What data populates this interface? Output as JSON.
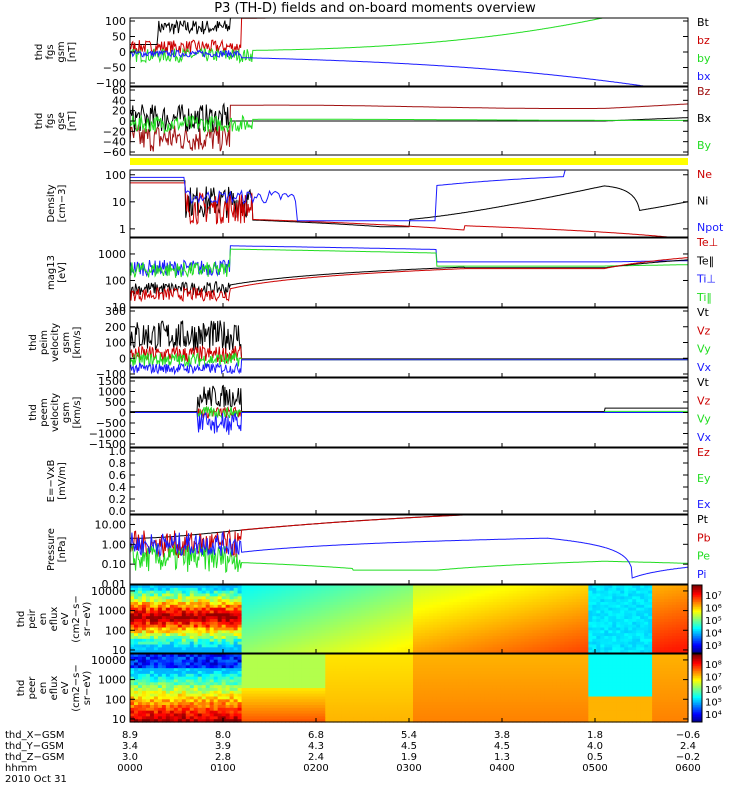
{
  "title": "P3 (TH-D) fields and on-board moments overview",
  "colors": {
    "black": "#000000",
    "red": "#cc0000",
    "green": "#22dd22",
    "blue": "#1a1aff",
    "darkred": "#a01010",
    "yellow": "#ffff00"
  },
  "chart_data": [
    {
      "type": "line",
      "panel": "fgs-gsm",
      "ylabel": [
        "thd",
        "fgs",
        "gsm",
        "[nT]"
      ],
      "ylim": [
        -100,
        100
      ],
      "yticks": [
        "100",
        "50",
        "0",
        "−50",
        "−100"
      ],
      "series": [
        {
          "name": "Bt",
          "color": "black"
        },
        {
          "name": "bz",
          "color": "red"
        },
        {
          "name": "by",
          "color": "green"
        },
        {
          "name": "bx",
          "color": "blue"
        }
      ]
    },
    {
      "type": "line",
      "panel": "fgs-gse",
      "ylabel": [
        "thd",
        "fgs",
        "gse",
        "[nT]"
      ],
      "ylim": [
        -60,
        60
      ],
      "yticks": [
        "60",
        "40",
        "20",
        "0",
        "−20",
        "−40",
        "−60"
      ],
      "series": [
        {
          "name": "Bz",
          "color": "darkred"
        },
        {
          "name": "Bx",
          "color": "black"
        },
        {
          "name": "By",
          "color": "green"
        }
      ]
    },
    {
      "type": "line",
      "panel": "density",
      "ylabel": [
        "Density",
        "[cm−3]"
      ],
      "scale": "log",
      "ylim": [
        0.5,
        150
      ],
      "yticks": [
        "100",
        "10",
        "1"
      ],
      "series": [
        {
          "name": "Ne",
          "color": "red"
        },
        {
          "name": "Ni",
          "color": "black"
        },
        {
          "name": "Npot",
          "color": "blue"
        }
      ]
    },
    {
      "type": "line",
      "panel": "temperature",
      "ylabel": [
        "mag13",
        "[eV]"
      ],
      "scale": "log",
      "ylim": [
        10,
        4000
      ],
      "yticks": [
        "1000",
        "100",
        "10"
      ],
      "series": [
        {
          "name": "Te⊥",
          "color": "red"
        },
        {
          "name": "Te‖",
          "color": "black"
        },
        {
          "name": "Ti⊥",
          "color": "blue"
        },
        {
          "name": "Ti‖",
          "color": "green"
        }
      ]
    },
    {
      "type": "line",
      "panel": "peim-velocity",
      "ylabel": [
        "thd",
        "peim",
        "velocity",
        "gsm",
        "[km/s]"
      ],
      "ylim": [
        -100,
        300
      ],
      "yticks": [
        "300",
        "200",
        "100",
        "0",
        "−100"
      ],
      "series": [
        {
          "name": "Vt",
          "color": "black"
        },
        {
          "name": "Vz",
          "color": "red"
        },
        {
          "name": "Vy",
          "color": "green"
        },
        {
          "name": "Vx",
          "color": "blue"
        }
      ]
    },
    {
      "type": "line",
      "panel": "peem-velocity",
      "ylabel": [
        "thd",
        "peem",
        "velocity",
        "gsm",
        "[km/s]"
      ],
      "ylim": [
        -1500,
        1500
      ],
      "yticks": [
        "1500",
        "1000",
        "500",
        "0",
        "−500",
        "−1000",
        "−1500"
      ],
      "series": [
        {
          "name": "Vt",
          "color": "black"
        },
        {
          "name": "Vz",
          "color": "red"
        },
        {
          "name": "Vy",
          "color": "green"
        },
        {
          "name": "Vx",
          "color": "blue"
        }
      ]
    },
    {
      "type": "line",
      "panel": "e-field",
      "ylabel": [
        "E=−VxB",
        "[mV/m]"
      ],
      "ylim": [
        0,
        1
      ],
      "yticks": [
        "1.0",
        "0.8",
        "0.6",
        "0.4",
        "0.2",
        "0.0"
      ],
      "series": [
        {
          "name": "Ez",
          "color": "red"
        },
        {
          "name": "Ey",
          "color": "green"
        },
        {
          "name": "Ex",
          "color": "blue"
        }
      ]
    },
    {
      "type": "line",
      "panel": "pressure",
      "ylabel": [
        "Pressure",
        "[nPa]"
      ],
      "scale": "log",
      "ylim": [
        0.01,
        30
      ],
      "yticks": [
        "10.00",
        "1.00",
        "0.10",
        "0.01"
      ],
      "series": [
        {
          "name": "Pt",
          "color": "black"
        },
        {
          "name": "Pb",
          "color": "red"
        },
        {
          "name": "Pe",
          "color": "green"
        },
        {
          "name": "Pi",
          "color": "blue"
        }
      ]
    },
    {
      "type": "heatmap",
      "panel": "peir-eflux",
      "ylabel": [
        "thd",
        "peir",
        "en",
        "eflux",
        "eV",
        "(cm2−s−",
        "sr−eV)"
      ],
      "scale": "log",
      "ylim": [
        7,
        20000
      ],
      "yticks": [
        "10000",
        "1000",
        "100",
        "10"
      ],
      "colorbar_ticks": [
        "10⁷",
        "10⁶",
        "10⁵",
        "10⁴",
        "10³"
      ]
    },
    {
      "type": "heatmap",
      "panel": "peer-eflux",
      "ylabel": [
        "thd",
        "peer",
        "en",
        "eflux",
        "eV",
        "(cm2−s−",
        "sr−eV)"
      ],
      "scale": "log",
      "ylim": [
        7,
        20000
      ],
      "yticks": [
        "10000",
        "1000",
        "100",
        "10"
      ],
      "colorbar_ticks": [
        "10⁸",
        "10⁷",
        "10⁶",
        "10⁵",
        "10⁴"
      ]
    }
  ],
  "xaxis": {
    "rows": [
      {
        "label": "thd_X−GSM",
        "values": [
          "8.9",
          "8.0",
          "6.8",
          "5.4",
          "3.8",
          "1.8",
          "−0.6"
        ]
      },
      {
        "label": "thd_Y−GSM",
        "values": [
          "3.4",
          "3.9",
          "4.3",
          "4.5",
          "4.5",
          "4.0",
          "2.4"
        ]
      },
      {
        "label": "thd_Z−GSM",
        "values": [
          "3.0",
          "2.8",
          "2.4",
          "1.9",
          "1.3",
          "0.5",
          "−0.2"
        ]
      },
      {
        "label": "hhmm",
        "values": [
          "0000",
          "0100",
          "0200",
          "0300",
          "0400",
          "0500",
          "0600"
        ]
      }
    ],
    "date": "2010 Oct 31"
  }
}
